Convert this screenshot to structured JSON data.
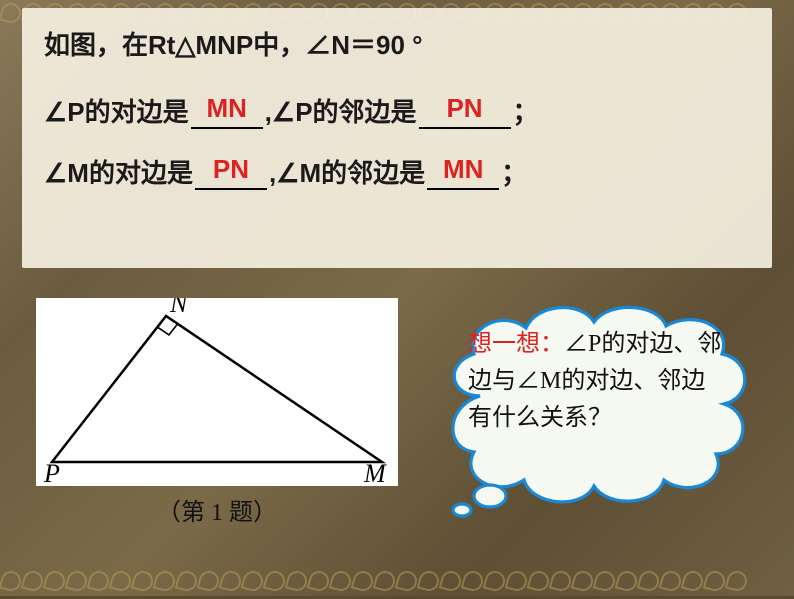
{
  "line1": {
    "prefix": "如图，在Rt△MNP中，∠N＝90 °"
  },
  "line2": {
    "p1": "∠P的对边是",
    "a1": "MN",
    "p2": ",∠P的邻边是",
    "a2": "PN",
    "p3": "；"
  },
  "line3": {
    "p1": "∠M的对边是",
    "a1": "PN",
    "p2": ",∠M的邻边是",
    "a2": "MN",
    "p3": "；"
  },
  "figure": {
    "caption": "（第 1 题）",
    "labels": {
      "N": "N",
      "P": "P",
      "M": "M"
    },
    "triangle": {
      "N": [
        130,
        18
      ],
      "P": [
        16,
        164
      ],
      "M": [
        346,
        164
      ]
    },
    "right_angle_mark": {
      "size": 14
    }
  },
  "cloud": {
    "prompt_label": "想一想：",
    "text_p1": "∠P的对边、邻边与∠M的对边、邻边有什么关系？",
    "stroke_color": "#1888d8",
    "fill_color": "#f6f9f2"
  },
  "colors": {
    "answer": "#dd2222",
    "text": "#111111",
    "panel_bg": "rgba(245,240,225,0.92)"
  }
}
